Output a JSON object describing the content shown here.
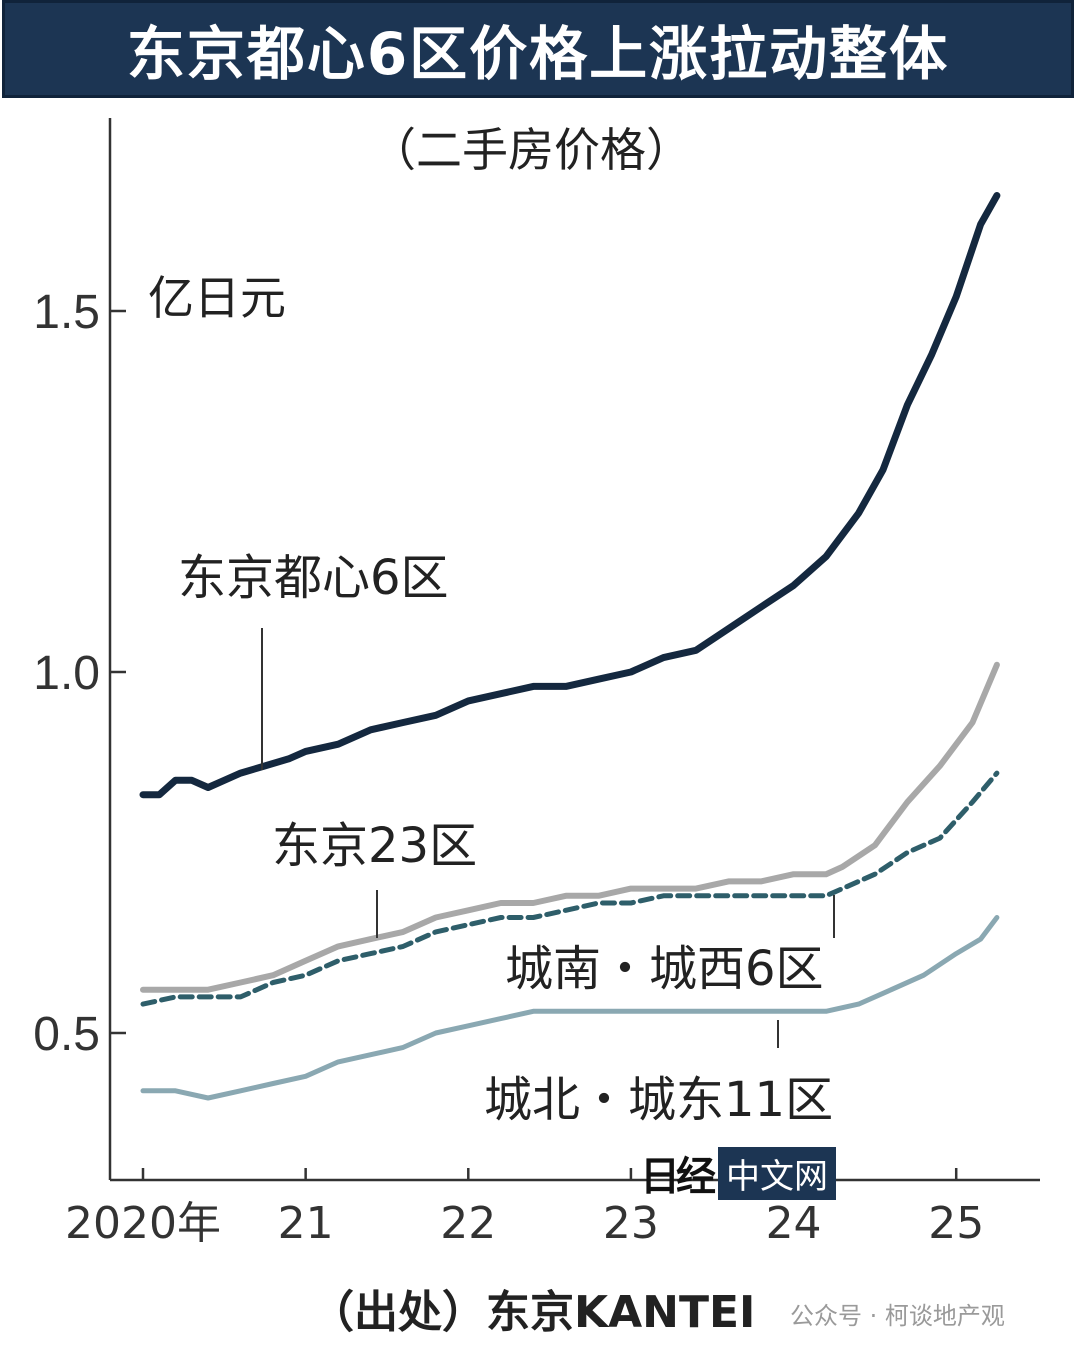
{
  "title": "东京都心6区价格上涨拉动整体",
  "logo": {
    "name": "日经",
    "badge": "中文网"
  },
  "source": "（出处）东京KANTEI",
  "watermark": "公众号 · 柯谈地产观",
  "chart_data": {
    "type": "line",
    "subtitle": "（二手房价格）",
    "ylabel": "亿日元",
    "ylim": [
      0.3,
      1.72
    ],
    "xlim": [
      2020.0,
      2025.3
    ],
    "yticks": [
      0.5,
      1.0,
      1.5
    ],
    "ytick_labels": [
      "0.5",
      "1.0",
      "1.5"
    ],
    "xticks": [
      2020,
      2021,
      2022,
      2023,
      2024,
      2025
    ],
    "xtick_labels": [
      "2020年",
      "21",
      "22",
      "23",
      "24",
      "25"
    ],
    "grid": false,
    "legend": "inline labels",
    "colors": {
      "central6": "#14283f",
      "tokyo23": "#a8a8a8",
      "south_west6": "#2e5e6a",
      "north_east11": "#8aa8b2"
    },
    "series": [
      {
        "name": "东京都心6区",
        "style": "solid-thick",
        "points": [
          [
            2020.0,
            0.83
          ],
          [
            2020.1,
            0.83
          ],
          [
            2020.2,
            0.85
          ],
          [
            2020.3,
            0.85
          ],
          [
            2020.4,
            0.84
          ],
          [
            2020.5,
            0.85
          ],
          [
            2020.6,
            0.86
          ],
          [
            2020.75,
            0.87
          ],
          [
            2020.9,
            0.88
          ],
          [
            2021.0,
            0.89
          ],
          [
            2021.2,
            0.9
          ],
          [
            2021.4,
            0.92
          ],
          [
            2021.6,
            0.93
          ],
          [
            2021.8,
            0.94
          ],
          [
            2022.0,
            0.96
          ],
          [
            2022.2,
            0.97
          ],
          [
            2022.4,
            0.98
          ],
          [
            2022.6,
            0.98
          ],
          [
            2022.8,
            0.99
          ],
          [
            2023.0,
            1.0
          ],
          [
            2023.2,
            1.02
          ],
          [
            2023.4,
            1.03
          ],
          [
            2023.6,
            1.06
          ],
          [
            2023.8,
            1.09
          ],
          [
            2024.0,
            1.12
          ],
          [
            2024.2,
            1.16
          ],
          [
            2024.4,
            1.22
          ],
          [
            2024.55,
            1.28
          ],
          [
            2024.7,
            1.37
          ],
          [
            2024.85,
            1.44
          ],
          [
            2025.0,
            1.52
          ],
          [
            2025.15,
            1.62
          ],
          [
            2025.25,
            1.66
          ]
        ]
      },
      {
        "name": "东京23区",
        "style": "solid-gray",
        "points": [
          [
            2020.0,
            0.56
          ],
          [
            2020.2,
            0.56
          ],
          [
            2020.4,
            0.56
          ],
          [
            2020.6,
            0.57
          ],
          [
            2020.8,
            0.58
          ],
          [
            2021.0,
            0.6
          ],
          [
            2021.2,
            0.62
          ],
          [
            2021.4,
            0.63
          ],
          [
            2021.6,
            0.64
          ],
          [
            2021.8,
            0.66
          ],
          [
            2022.0,
            0.67
          ],
          [
            2022.2,
            0.68
          ],
          [
            2022.4,
            0.68
          ],
          [
            2022.6,
            0.69
          ],
          [
            2022.8,
            0.69
          ],
          [
            2023.0,
            0.7
          ],
          [
            2023.2,
            0.7
          ],
          [
            2023.4,
            0.7
          ],
          [
            2023.6,
            0.71
          ],
          [
            2023.8,
            0.71
          ],
          [
            2024.0,
            0.72
          ],
          [
            2024.2,
            0.72
          ],
          [
            2024.3,
            0.73
          ],
          [
            2024.5,
            0.76
          ],
          [
            2024.7,
            0.82
          ],
          [
            2024.9,
            0.87
          ],
          [
            2025.1,
            0.93
          ],
          [
            2025.25,
            1.01
          ]
        ]
      },
      {
        "name": "城南・城西6区",
        "style": "dashed",
        "points": [
          [
            2020.0,
            0.54
          ],
          [
            2020.2,
            0.55
          ],
          [
            2020.4,
            0.55
          ],
          [
            2020.6,
            0.55
          ],
          [
            2020.8,
            0.57
          ],
          [
            2021.0,
            0.58
          ],
          [
            2021.2,
            0.6
          ],
          [
            2021.4,
            0.61
          ],
          [
            2021.6,
            0.62
          ],
          [
            2021.8,
            0.64
          ],
          [
            2022.0,
            0.65
          ],
          [
            2022.2,
            0.66
          ],
          [
            2022.4,
            0.66
          ],
          [
            2022.6,
            0.67
          ],
          [
            2022.8,
            0.68
          ],
          [
            2023.0,
            0.68
          ],
          [
            2023.2,
            0.69
          ],
          [
            2023.4,
            0.69
          ],
          [
            2023.6,
            0.69
          ],
          [
            2023.8,
            0.69
          ],
          [
            2024.0,
            0.69
          ],
          [
            2024.2,
            0.69
          ],
          [
            2024.3,
            0.7
          ],
          [
            2024.5,
            0.72
          ],
          [
            2024.7,
            0.75
          ],
          [
            2024.9,
            0.77
          ],
          [
            2025.1,
            0.82
          ],
          [
            2025.25,
            0.86
          ]
        ]
      },
      {
        "name": "城北・城东11区",
        "style": "solid-light",
        "points": [
          [
            2020.0,
            0.42
          ],
          [
            2020.2,
            0.42
          ],
          [
            2020.4,
            0.41
          ],
          [
            2020.6,
            0.42
          ],
          [
            2020.8,
            0.43
          ],
          [
            2021.0,
            0.44
          ],
          [
            2021.2,
            0.46
          ],
          [
            2021.4,
            0.47
          ],
          [
            2021.6,
            0.48
          ],
          [
            2021.8,
            0.5
          ],
          [
            2022.0,
            0.51
          ],
          [
            2022.2,
            0.52
          ],
          [
            2022.4,
            0.53
          ],
          [
            2022.6,
            0.53
          ],
          [
            2022.8,
            0.53
          ],
          [
            2023.0,
            0.53
          ],
          [
            2023.2,
            0.53
          ],
          [
            2023.4,
            0.53
          ],
          [
            2023.6,
            0.53
          ],
          [
            2023.8,
            0.53
          ],
          [
            2024.0,
            0.53
          ],
          [
            2024.2,
            0.53
          ],
          [
            2024.4,
            0.54
          ],
          [
            2024.6,
            0.56
          ],
          [
            2024.8,
            0.58
          ],
          [
            2025.0,
            0.61
          ],
          [
            2025.15,
            0.63
          ],
          [
            2025.25,
            0.66
          ]
        ]
      }
    ],
    "annotations": [
      {
        "text": "东京都心6区",
        "series": 0
      },
      {
        "text": "东京23区",
        "series": 1
      },
      {
        "text": "城南・城西6区",
        "series": 2
      },
      {
        "text": "城北・城东11区",
        "series": 3
      }
    ]
  }
}
